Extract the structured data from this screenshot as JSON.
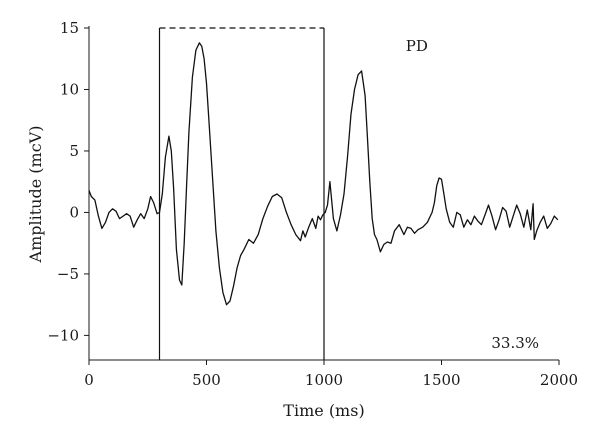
{
  "chart_data": {
    "type": "line",
    "title": "",
    "xlabel": "Time (ms)",
    "ylabel": "Amplitude (mcV)",
    "xlim": [
      0,
      2000
    ],
    "ylim": [
      -12,
      15
    ],
    "xticks": [
      0,
      500,
      1000,
      1500,
      2000
    ],
    "yticks": [
      -10,
      -5,
      0,
      5,
      10,
      15
    ],
    "grid": false,
    "legend": "none",
    "annotations": {
      "label": "PD",
      "percent": "33.3%"
    },
    "highlight_window": {
      "x_start": 300,
      "x_end": 1000,
      "top": 15,
      "top_style": "dashed"
    },
    "series": [
      {
        "x": [
          0,
          10,
          25,
          40,
          55,
          70,
          85,
          100,
          115,
          130,
          145,
          160,
          175,
          190,
          205,
          220,
          235,
          250,
          262,
          275,
          290,
          300,
          312,
          325,
          340,
          350,
          360,
          372,
          385,
          395,
          405,
          415,
          425,
          440,
          455,
          470,
          480,
          490,
          500,
          510,
          525,
          540,
          555,
          570,
          585,
          600,
          615,
          630,
          645,
          660,
          680,
          700,
          720,
          740,
          760,
          780,
          800,
          820,
          840,
          860,
          880,
          900,
          910,
          920,
          935,
          950,
          965,
          975,
          985,
          995,
          1005,
          1015,
          1025,
          1040,
          1055,
          1070,
          1085,
          1100,
          1115,
          1130,
          1145,
          1160,
          1175,
          1185,
          1195,
          1205,
          1215,
          1225,
          1240,
          1255,
          1270,
          1285,
          1300,
          1320,
          1340,
          1355,
          1370,
          1385,
          1400,
          1420,
          1440,
          1460,
          1470,
          1480,
          1490,
          1500,
          1510,
          1520,
          1535,
          1550,
          1565,
          1580,
          1595,
          1610,
          1625,
          1640,
          1655,
          1670,
          1685,
          1700,
          1715,
          1730,
          1745,
          1760,
          1775,
          1790,
          1805,
          1820,
          1835,
          1850,
          1865,
          1880,
          1890,
          1895,
          1905,
          1920,
          1935,
          1950,
          1965,
          1980,
          1995
        ],
        "y": [
          1.8,
          1.3,
          1.0,
          -0.3,
          -1.3,
          -0.8,
          0.0,
          0.3,
          0.1,
          -0.5,
          -0.3,
          -0.1,
          -0.3,
          -1.2,
          -0.6,
          -0.1,
          -0.5,
          0.3,
          1.3,
          0.8,
          -0.1,
          0.0,
          1.5,
          4.5,
          6.2,
          5.0,
          2.0,
          -3.0,
          -5.5,
          -5.9,
          -2.5,
          2.0,
          6.5,
          11.0,
          13.2,
          13.8,
          13.5,
          12.5,
          10.5,
          7.5,
          3.0,
          -1.5,
          -4.5,
          -6.5,
          -7.5,
          -7.2,
          -6.0,
          -4.5,
          -3.5,
          -3.0,
          -2.2,
          -2.5,
          -1.8,
          -0.5,
          0.5,
          1.3,
          1.5,
          1.2,
          0.0,
          -1.0,
          -1.8,
          -2.3,
          -1.5,
          -2.0,
          -1.2,
          -0.5,
          -1.3,
          -0.3,
          -0.6,
          -0.2,
          0.0,
          0.6,
          2.5,
          -0.5,
          -1.5,
          -0.2,
          1.5,
          4.5,
          8.0,
          10.0,
          11.2,
          11.5,
          9.5,
          6.0,
          2.5,
          -0.5,
          -1.8,
          -2.2,
          -3.2,
          -2.6,
          -2.4,
          -2.5,
          -1.5,
          -1.0,
          -1.8,
          -1.2,
          -1.3,
          -1.7,
          -1.4,
          -1.2,
          -0.8,
          0.0,
          0.8,
          2.2,
          2.8,
          2.7,
          1.5,
          0.3,
          -0.8,
          -1.2,
          0.0,
          -0.2,
          -1.2,
          -0.6,
          -1.0,
          -0.3,
          -0.7,
          -1.0,
          -0.2,
          0.6,
          -0.3,
          -1.4,
          -0.6,
          0.4,
          0.1,
          -1.2,
          -0.3,
          0.6,
          -0.1,
          -1.2,
          0.2,
          -1.4,
          0.7,
          -2.2,
          -1.5,
          -0.8,
          -0.3,
          -1.3,
          -0.9,
          -0.3,
          -0.6
        ]
      }
    ]
  }
}
